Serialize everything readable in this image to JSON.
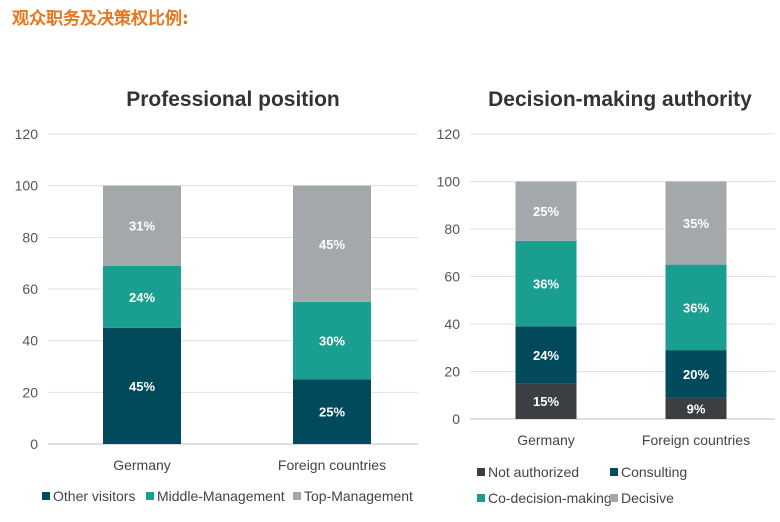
{
  "header": "观众职务及决策权比例:",
  "chart_data": [
    {
      "type": "bar",
      "stacked": true,
      "title": "Professional position",
      "categories": [
        "Germany",
        "Foreign countries"
      ],
      "ylim": [
        0,
        120
      ],
      "yticks": [
        0,
        20,
        40,
        60,
        80,
        100,
        120
      ],
      "grid": true,
      "legend_position": "bottom",
      "series": [
        {
          "name": "Other visitors",
          "values": [
            45,
            25
          ],
          "labels": [
            "45%",
            "25%"
          ],
          "color": "#004A5C"
        },
        {
          "name": "Middle-Management",
          "values": [
            24,
            30
          ],
          "labels": [
            "24%",
            "30%"
          ],
          "color": "#1A9E8F"
        },
        {
          "name": "Top-Management",
          "values": [
            31,
            45
          ],
          "labels": [
            "31%",
            "45%"
          ],
          "color": "#A3A8AB"
        }
      ]
    },
    {
      "type": "bar",
      "stacked": true,
      "title": "Decision-making authority",
      "categories": [
        "Germany",
        "Foreign countries"
      ],
      "ylim": [
        0,
        120
      ],
      "yticks": [
        0,
        20,
        40,
        60,
        80,
        100,
        120
      ],
      "grid": true,
      "legend_position": "bottom",
      "series": [
        {
          "name": "Not authorized",
          "values": [
            15,
            9
          ],
          "labels": [
            "15%",
            "9%"
          ],
          "color": "#3A3F42"
        },
        {
          "name": "Consulting",
          "values": [
            24,
            20
          ],
          "labels": [
            "24%",
            "20%"
          ],
          "color": "#004A5C"
        },
        {
          "name": "Co-decision-making",
          "values": [
            36,
            36
          ],
          "labels": [
            "36%",
            "36%"
          ],
          "color": "#1A9E8F"
        },
        {
          "name": "Decisive",
          "values": [
            25,
            35
          ],
          "labels": [
            "25%",
            "35%"
          ],
          "color": "#A3A8AB"
        }
      ]
    }
  ]
}
